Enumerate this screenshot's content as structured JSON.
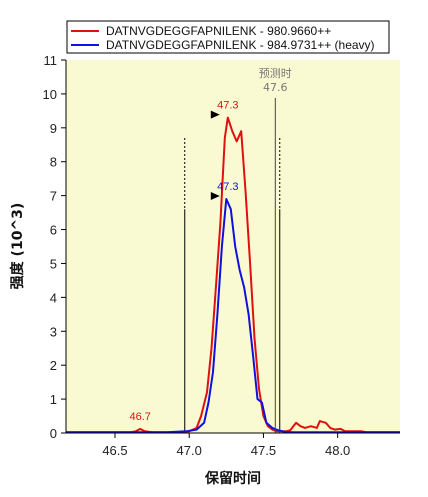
{
  "chart_data": {
    "type": "line",
    "xlabel": "保留时间",
    "ylabel": "强度 (10^3)",
    "xlim": [
      46.17,
      48.42
    ],
    "ylim": [
      0,
      11
    ],
    "x_ticks": [
      "46.5",
      "47.0",
      "47.5",
      "48.0"
    ],
    "x_tick_values": [
      46.5,
      47.0,
      47.5,
      48.0
    ],
    "y_ticks": [
      "0",
      "1",
      "2",
      "3",
      "4",
      "5",
      "6",
      "7",
      "8",
      "9",
      "10",
      "11"
    ],
    "y_tick_values": [
      0,
      1,
      2,
      3,
      4,
      5,
      6,
      7,
      8,
      9,
      10,
      11
    ],
    "plot_background": "#fafad2",
    "series": [
      {
        "name": "DATNVGDEGGFAPNILENK - 980.9660++",
        "color": "#e01010",
        "x": [
          46.17,
          46.3,
          46.45,
          46.6,
          46.64,
          46.67,
          46.7,
          46.75,
          46.85,
          46.95,
          47.0,
          47.05,
          47.08,
          47.12,
          47.15,
          47.18,
          47.21,
          47.24,
          47.26,
          47.29,
          47.32,
          47.35,
          47.38,
          47.41,
          47.44,
          47.47,
          47.5,
          47.53,
          47.56,
          47.59,
          47.62,
          47.65,
          47.68,
          47.72,
          47.75,
          47.78,
          47.82,
          47.86,
          47.88,
          47.92,
          47.95,
          47.98,
          48.02,
          48.05,
          48.08,
          48.12,
          48.16,
          48.2,
          48.25,
          48.3,
          48.35,
          48.42
        ],
        "y": [
          0.02,
          0.02,
          0.02,
          0.02,
          0.05,
          0.12,
          0.05,
          0.02,
          0.02,
          0.02,
          0.05,
          0.15,
          0.5,
          1.2,
          2.5,
          4.3,
          6.2,
          8.7,
          9.3,
          8.9,
          8.6,
          8.9,
          7.1,
          5.0,
          2.8,
          1.3,
          0.5,
          0.2,
          0.1,
          0.05,
          0.05,
          0.05,
          0.08,
          0.3,
          0.2,
          0.15,
          0.2,
          0.15,
          0.35,
          0.3,
          0.15,
          0.1,
          0.12,
          0.05,
          0.05,
          0.05,
          0.05,
          0.02,
          0.02,
          0.02,
          0.02,
          0.02
        ]
      },
      {
        "name": "DATNVGDEGGFAPNILENK - 984.9731++ (heavy)",
        "color": "#1010e0",
        "x": [
          46.17,
          46.5,
          46.85,
          46.98,
          47.05,
          47.1,
          47.13,
          47.16,
          47.19,
          47.22,
          47.25,
          47.28,
          47.31,
          47.34,
          47.37,
          47.4,
          47.43,
          47.46,
          47.49,
          47.52,
          47.56,
          47.6,
          47.65,
          47.7,
          48.0,
          48.42
        ],
        "y": [
          0.02,
          0.02,
          0.02,
          0.05,
          0.1,
          0.3,
          0.9,
          1.8,
          3.5,
          5.5,
          6.9,
          6.6,
          5.5,
          4.8,
          4.3,
          3.5,
          2.3,
          1.0,
          0.9,
          0.3,
          0.15,
          0.08,
          0.03,
          0.02,
          0.02,
          0.02
        ]
      }
    ],
    "peak_annotations": [
      {
        "label": "46.7",
        "x": 46.67,
        "y": 0.12,
        "color": "#e01010"
      },
      {
        "label": "47.3",
        "x": 47.26,
        "y": 9.3,
        "color": "#e01010"
      },
      {
        "label": "47.3",
        "x": 47.26,
        "y": 6.9,
        "color": "#1010e0"
      }
    ],
    "integration_boundaries": [
      46.97,
      47.61
    ],
    "predicted": {
      "label": "预测时",
      "value": "47.6",
      "x": 47.58
    },
    "legend_position": "top"
  }
}
